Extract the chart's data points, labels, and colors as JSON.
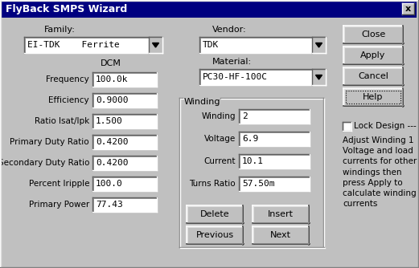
{
  "title": "FlyBack SMPS Wizard",
  "bg_color": "#c0c0c0",
  "title_bar_color": "#000080",
  "title_text_color": "#ffffff",
  "white": "#ffffff",
  "black": "#000000",
  "family_label": "Family:",
  "family_value": "EI-TDK    Ferrite",
  "vendor_label": "Vendor:",
  "vendor_value": "TDK",
  "material_label": "Material:",
  "material_value": "PC30-HF-100C",
  "dcm_label": "DCM",
  "fields": [
    [
      "Frequency",
      "100.0k"
    ],
    [
      "Efficiency",
      "0.9000"
    ],
    [
      "Ratio Isat/Ipk",
      "1.500"
    ],
    [
      "Primary Duty Ratio",
      "0.4200"
    ],
    [
      "Secondary Duty Ratio",
      "0.4200"
    ],
    [
      "Percent Iripple",
      "100.0"
    ],
    [
      "Primary Power",
      "77.43"
    ]
  ],
  "winding_label": "Winding",
  "winding_fields": [
    [
      "Winding",
      "2"
    ],
    [
      "Voltage",
      "6.9"
    ],
    [
      "Current",
      "10.1"
    ],
    [
      "Turns Ratio",
      "57.50m"
    ]
  ],
  "winding_buttons": [
    "Delete",
    "Insert",
    "Previous",
    "Next"
  ],
  "right_buttons": [
    "Close",
    "Apply",
    "Cancel",
    "Help"
  ],
  "lock_label": "Lock Design ---",
  "help_text": "Adjust Winding 1\nVoltage and load\ncurrents for other\nwindings then\npress Apply to\ncalculate winding\ncurrents"
}
